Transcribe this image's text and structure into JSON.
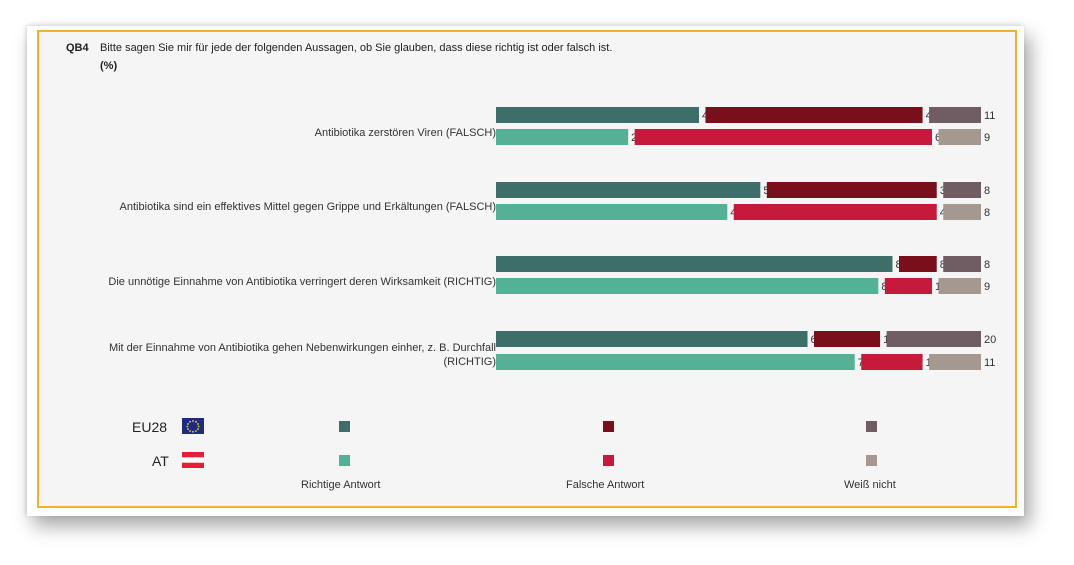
{
  "header": {
    "code": "QB4",
    "question": "Bitte sagen Sie mir für jede der folgenden Aussagen, ob Sie glauben, dass diese richtig ist oder falsch ist.",
    "unit": "(%)"
  },
  "colors": {
    "eu_correct": "#3d6e6a",
    "eu_wrong": "#7a0f1c",
    "eu_dk": "#705c63",
    "at_correct": "#55b196",
    "at_wrong": "#c51a3b",
    "at_dk": "#a59891"
  },
  "chart_data": {
    "type": "bar",
    "stacked": true,
    "orientation": "horizontal",
    "categories": [
      "Antibiotika zerstören Viren (FALSCH)",
      "Antibiotika sind ein effektives Mittel gegen Grippe und Erkältungen (FALSCH)",
      "Die unnötige Einnahme von Antibiotika verringert deren Wirksamkeit (RICHTIG)",
      "Mit der Einnahme von Antibiotika gehen Nebenwirkungen einher, z. B. Durchfall (RICHTIG)"
    ],
    "groups": [
      "EU28",
      "AT"
    ],
    "series": [
      {
        "name": "Richtige Antwort",
        "EU28": [
          43,
          56,
          84,
          66
        ],
        "AT": [
          28,
          49,
          81,
          76
        ]
      },
      {
        "name": "Falsche Antwort",
        "EU28": [
          46,
          36,
          8,
          14
        ],
        "AT": [
          63,
          43,
          10,
          13
        ]
      },
      {
        "name": "Weiß nicht",
        "EU28": [
          11,
          8,
          8,
          20
        ],
        "AT": [
          9,
          8,
          9,
          11
        ]
      }
    ]
  },
  "legend": {
    "rows": [
      "EU28",
      "AT"
    ],
    "labels": [
      "Richtige Antwort",
      "Falsche Antwort",
      "Weiß nicht"
    ]
  }
}
